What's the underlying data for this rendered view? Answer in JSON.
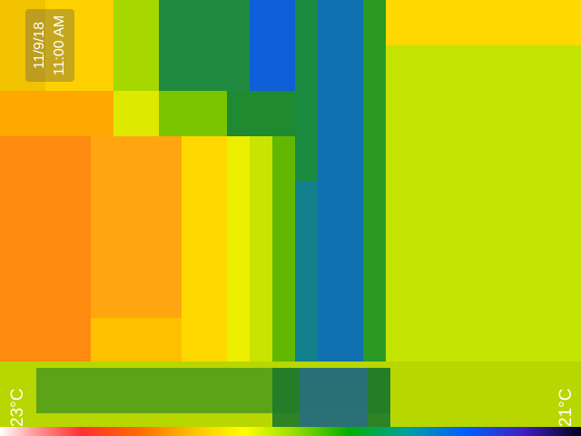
{
  "overlay": {
    "date": "11/9/18",
    "time": "11:00 AM",
    "temp_max": "23°C",
    "temp_min": "21°C"
  },
  "colors": {
    "hot": "#ff7a10",
    "warm": "#ffd000",
    "mid": "#c8e800",
    "cool": "#1a8a20",
    "cold": "#1060d0"
  }
}
